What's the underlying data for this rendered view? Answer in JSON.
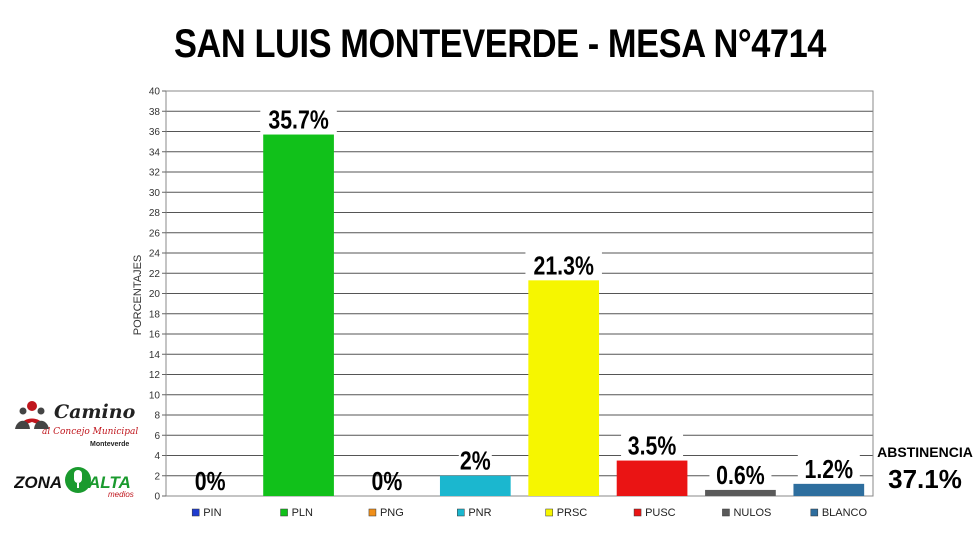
{
  "chart_data": {
    "type": "bar",
    "title": "SAN LUIS MONTEVERDE - MESA N°4714",
    "ylabel": "PORCENTAJES",
    "xlabel": "",
    "ylim": [
      0,
      40
    ],
    "ytick_step": 2,
    "grid": true,
    "legend_position": "bottom",
    "categories": [
      "PIN",
      "PLN",
      "PNG",
      "PNR",
      "PRSC",
      "PUSC",
      "NULOS",
      "BLANCO"
    ],
    "values": [
      0,
      35.7,
      0,
      2,
      21.3,
      3.5,
      0.6,
      1.2
    ],
    "labels": [
      "0%",
      "35.7%",
      "0%",
      "2%",
      "21.3%",
      "3.5%",
      "0.6%",
      "1.2%"
    ],
    "colors": [
      "#1f3ccf",
      "#11c11a",
      "#f08f1a",
      "#1bb7cf",
      "#f6f600",
      "#ea1414",
      "#5a5a5a",
      "#2e6e9e"
    ]
  },
  "abstention": {
    "label": "ABSTINENCIA",
    "value": "37.1%"
  },
  "logos": {
    "camino": {
      "main": "Camino",
      "sub": "al Concejo Municipal",
      "small": "Monteverde"
    },
    "zona_alta": {
      "zona": "ZONA",
      "alta": "ALTA",
      "medios": "medios"
    }
  }
}
